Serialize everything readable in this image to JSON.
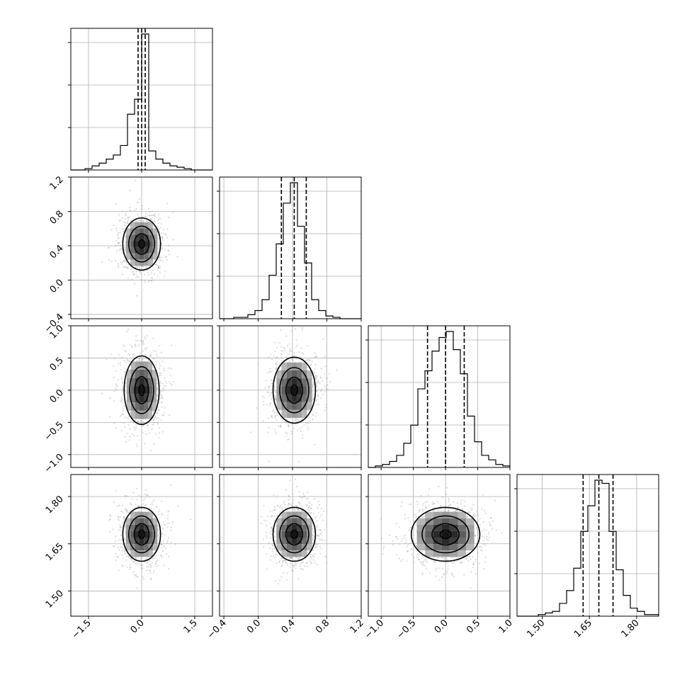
{
  "chart_data": {
    "type": "corner",
    "grid": true,
    "parameters": [
      {
        "range": [
          -2.0,
          2.0
        ],
        "ticks": [
          {
            "value": -1.5,
            "label": "−1.5"
          },
          {
            "value": 0.0,
            "label": "0.0"
          },
          {
            "value": 1.5,
            "label": "1.5"
          }
        ],
        "median": 0.0,
        "q16": -0.1,
        "q84": 0.1
      },
      {
        "range": [
          -0.45,
          1.2
        ],
        "ticks": [
          {
            "value": -0.4,
            "label": "−0.4"
          },
          {
            "value": 0.0,
            "label": "0.0"
          },
          {
            "value": 0.4,
            "label": "0.4"
          },
          {
            "value": 0.8,
            "label": "0.8"
          },
          {
            "value": 1.2,
            "label": "1.2"
          }
        ],
        "median": 0.42,
        "q16": 0.27,
        "q84": 0.56
      },
      {
        "range": [
          -1.2,
          1.0
        ],
        "ticks": [
          {
            "value": -1.0,
            "label": "−1.0"
          },
          {
            "value": -0.5,
            "label": "−0.5"
          },
          {
            "value": 0.0,
            "label": "0.0"
          },
          {
            "value": 0.5,
            "label": "0.5"
          },
          {
            "value": 1.0,
            "label": "1.0"
          }
        ],
        "median": 0.0,
        "q16": -0.28,
        "q84": 0.29
      },
      {
        "range": [
          1.42,
          1.87
        ],
        "ticks": [
          {
            "value": 1.5,
            "label": "1.50"
          },
          {
            "value": 1.65,
            "label": "1.65"
          },
          {
            "value": 1.8,
            "label": "1.80"
          }
        ],
        "median": 1.68,
        "q16": 1.63,
        "q84": 1.725
      }
    ],
    "histograms": [
      {
        "bins": [
          -2.0,
          -1.8,
          -1.6,
          -1.4,
          -1.2,
          -1.0,
          -0.8,
          -0.6,
          -0.4,
          -0.2,
          0.0,
          0.2,
          0.4,
          0.6,
          0.8,
          1.0,
          1.2,
          1.4,
          1.6,
          1.8,
          2.0
        ],
        "counts": [
          0,
          0,
          1,
          3,
          5,
          8,
          11,
          18,
          41,
          52,
          100,
          14,
          8,
          5,
          3,
          2,
          1,
          0,
          0,
          0
        ]
      },
      {
        "bins": [
          -0.45,
          -0.3675,
          -0.285,
          -0.2025,
          -0.12,
          -0.0375,
          0.045,
          0.1275,
          0.21,
          0.2925,
          0.375,
          0.4575,
          0.54,
          0.6225,
          0.705,
          0.7875,
          0.87,
          0.9525,
          1.035,
          1.1175,
          1.2
        ],
        "counts": [
          0,
          0,
          1,
          1,
          3,
          6,
          14,
          32,
          55,
          85,
          100,
          68,
          41,
          14,
          6,
          2,
          1,
          0,
          0,
          0
        ]
      },
      {
        "bins": [
          -1.2,
          -1.09,
          -0.98,
          -0.87,
          -0.76,
          -0.65,
          -0.54,
          -0.43,
          -0.32,
          -0.21,
          -0.1,
          0.01,
          0.12,
          0.23,
          0.34,
          0.45,
          0.56,
          0.67,
          0.78,
          0.89,
          1.0
        ],
        "counts": [
          0,
          1,
          2,
          4,
          8,
          16,
          28,
          52,
          64,
          77,
          86,
          90,
          78,
          62,
          34,
          17,
          8,
          5,
          2,
          1
        ]
      },
      {
        "bins": [
          1.42,
          1.4425,
          1.465,
          1.4875,
          1.51,
          1.5325,
          1.555,
          1.5775,
          1.6,
          1.6225,
          1.645,
          1.6675,
          1.69,
          1.7125,
          1.735,
          1.7575,
          1.78,
          1.8025,
          1.825,
          1.8475,
          1.87
        ],
        "counts": [
          0,
          0,
          0,
          1,
          2,
          3,
          8,
          16,
          30,
          53,
          69,
          85,
          83,
          53,
          29,
          13,
          5,
          3,
          1,
          1
        ]
      }
    ],
    "pairs": [
      {
        "row": 1,
        "col": 0,
        "sigma_x": 0.28,
        "sigma_y": 0.16,
        "rho": 0.0
      },
      {
        "row": 2,
        "col": 0,
        "sigma_x": 0.26,
        "sigma_y": 0.28,
        "rho": 0.0
      },
      {
        "row": 2,
        "col": 1,
        "sigma_x": 0.13,
        "sigma_y": 0.27,
        "rho": 0.0
      },
      {
        "row": 3,
        "col": 0,
        "sigma_x": 0.28,
        "sigma_y": 0.045,
        "rho": 0.0
      },
      {
        "row": 3,
        "col": 1,
        "sigma_x": 0.13,
        "sigma_y": 0.045,
        "rho": 0.0
      },
      {
        "row": 3,
        "col": 2,
        "sigma_x": 0.28,
        "sigma_y": 0.045,
        "rho": 0.0
      }
    ]
  }
}
